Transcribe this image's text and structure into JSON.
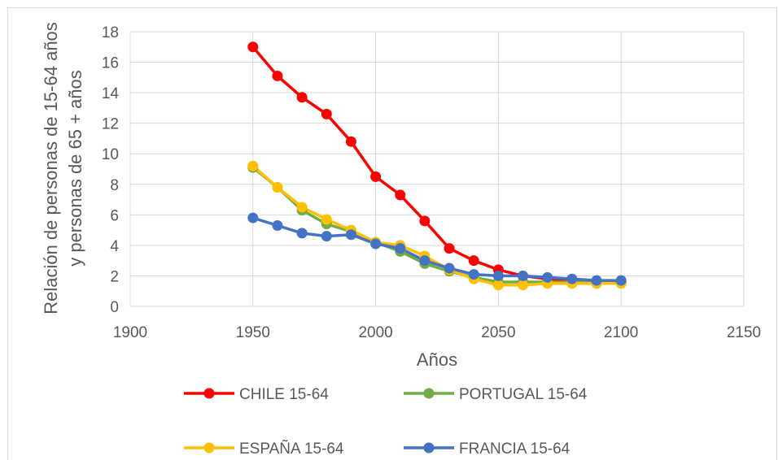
{
  "chart_data": {
    "type": "line",
    "title": "",
    "xlabel": "Años",
    "ylabel_lines": [
      "Relación de personas de 15-64 años",
      "y personas de 65 + años"
    ],
    "xlim": [
      1900,
      2150
    ],
    "ylim": [
      0,
      18
    ],
    "xticks": [
      1900,
      1950,
      2000,
      2050,
      2100,
      2150
    ],
    "yticks": [
      0,
      2,
      4,
      6,
      8,
      10,
      12,
      14,
      16,
      18
    ],
    "grid": true,
    "legend_position": "bottom",
    "x": [
      1950,
      1960,
      1970,
      1980,
      1990,
      2000,
      2010,
      2020,
      2030,
      2040,
      2050,
      2060,
      2070,
      2080,
      2090,
      2100
    ],
    "series": [
      {
        "name": "CHILE 15-64",
        "color": "#ff0000",
        "values": [
          17.0,
          15.1,
          13.7,
          12.6,
          10.8,
          8.5,
          7.3,
          5.6,
          3.8,
          3.0,
          2.4,
          2.0,
          1.8,
          1.7,
          1.6,
          1.6
        ]
      },
      {
        "name": "PORTUGAL 15-64",
        "color": "#70ad47",
        "values": [
          9.1,
          7.8,
          6.3,
          5.4,
          4.9,
          4.2,
          3.6,
          2.8,
          2.3,
          1.9,
          1.6,
          1.6,
          1.6,
          1.6,
          1.6,
          1.6
        ]
      },
      {
        "name": "ESPAÑA 15-64",
        "color": "#ffc000",
        "values": [
          9.2,
          7.8,
          6.5,
          5.7,
          5.0,
          4.2,
          4.0,
          3.3,
          2.4,
          1.8,
          1.4,
          1.4,
          1.5,
          1.5,
          1.5,
          1.5
        ]
      },
      {
        "name": "FRANCIA 15-64",
        "color": "#4472c4",
        "values": [
          5.8,
          5.3,
          4.8,
          4.6,
          4.7,
          4.1,
          3.8,
          3.0,
          2.5,
          2.1,
          2.0,
          2.0,
          1.9,
          1.8,
          1.7,
          1.7
        ]
      }
    ]
  }
}
